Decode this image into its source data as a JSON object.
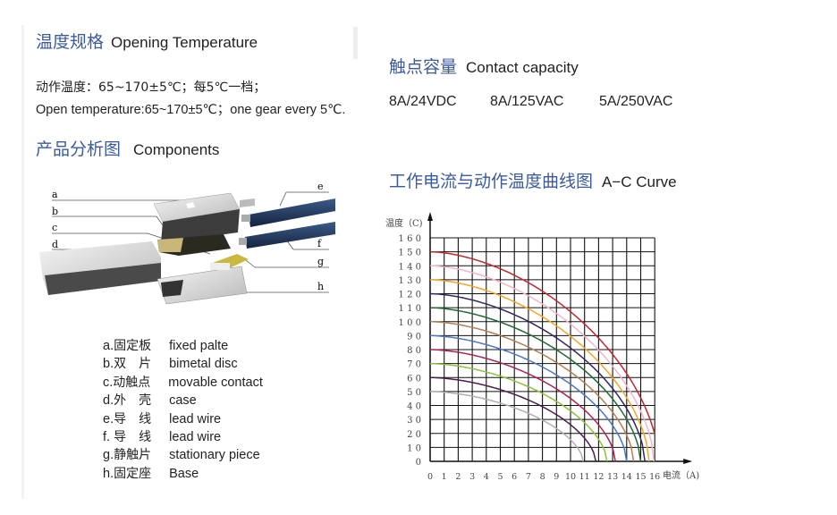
{
  "opening": {
    "title_cn": "温度规格",
    "title_en": "Opening Temperature",
    "line_cn": "动作温度：65~170±5℃；每5℃一档；",
    "line_en": "Open temperature:65~170±5℃；one gear every 5℃."
  },
  "components": {
    "title_cn": "产品分析图",
    "title_en": "Components",
    "callouts": [
      "a",
      "b",
      "c",
      "d",
      "e",
      "f",
      "g",
      "h"
    ],
    "items": [
      {
        "key": "a.",
        "cn": "固定板",
        "en": "fixed palte"
      },
      {
        "key": "b.",
        "cn": "双　片",
        "en": "bimetal disc"
      },
      {
        "key": "c.",
        "cn": "动触点",
        "en": "movable contact"
      },
      {
        "key": "d.",
        "cn": "外　壳",
        "en": "case"
      },
      {
        "key": "e.",
        "cn": "导　线",
        "en": "lead wire"
      },
      {
        "key": "f. ",
        "cn": "导　线",
        "en": "lead wire"
      },
      {
        "key": "g.",
        "cn": "静触片",
        "en": "stationary piece"
      },
      {
        "key": "h.",
        "cn": "固定座",
        "en": "Base"
      }
    ]
  },
  "contact": {
    "title_cn": "触点容量",
    "title_en": "Contact capacity",
    "ratings": [
      "8A/24VDC",
      "8A/125VAC",
      "5A/250VAC"
    ]
  },
  "curve": {
    "title_cn": "工作电流与动作温度曲线图",
    "title_en": "A−C Curve"
  },
  "chart_data": {
    "type": "line",
    "ylabel": "温度（C)",
    "xlabel": "电流（A)",
    "xlim": [
      0,
      16
    ],
    "ylim": [
      0,
      160
    ],
    "xticks": [
      "0",
      "1",
      "2",
      "3",
      "4",
      "5",
      "6",
      "7",
      "8",
      "9",
      "10",
      "11",
      "12",
      "13",
      "14",
      "15",
      "16"
    ],
    "yticks": [
      "0",
      "1 0",
      "2 0",
      "3 0",
      "4 0",
      "5 0",
      "6 0",
      "7 0",
      "8 0",
      "9 0",
      "1 0 0",
      "1 1 0",
      "1 2 0",
      "1 3 0",
      "1 4 0",
      "1 5 0",
      "1 6 0"
    ],
    "grid": true,
    "series": [
      {
        "temp_at_0A": 150,
        "current_at_0C": 16.3,
        "color": "#c0262c"
      },
      {
        "temp_at_0A": 140,
        "current_at_0C": 15.95,
        "color": "#f2b6c6"
      },
      {
        "temp_at_0A": 130,
        "current_at_0C": 15.6,
        "color": "#f4a62a"
      },
      {
        "temp_at_0A": 120,
        "current_at_0C": 15.3,
        "color": "#33285e"
      },
      {
        "temp_at_0A": 110,
        "current_at_0C": 15.0,
        "color": "#1f6a32"
      },
      {
        "temp_at_0A": 100,
        "current_at_0C": 14.5,
        "color": "#b08052"
      },
      {
        "temp_at_0A": 90,
        "current_at_0C": 14.0,
        "color": "#4b78c6"
      },
      {
        "temp_at_0A": 80,
        "current_at_0C": 13.2,
        "color": "#ae2155"
      },
      {
        "temp_at_0A": 70,
        "current_at_0C": 12.6,
        "color": "#8cc03f"
      },
      {
        "temp_at_0A": 60,
        "current_at_0C": 11.8,
        "color": "#4a1c4e"
      },
      {
        "temp_at_0A": 50,
        "current_at_0C": 10.9,
        "color": "#b0b0b0"
      }
    ]
  }
}
